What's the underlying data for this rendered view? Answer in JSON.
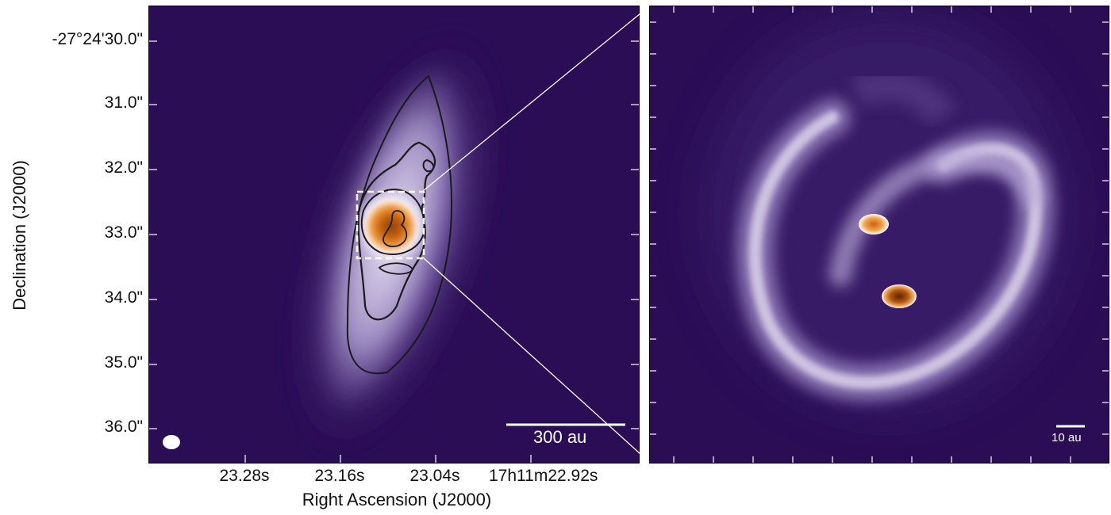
{
  "figure": {
    "left_panel": {
      "y_ticks": [
        "-27°24'30.0\"",
        "31.0\"",
        "32.0\"",
        "33.0\"",
        "34.0\"",
        "35.0\"",
        "36.0\""
      ],
      "x_ticks": [
        "23.28s",
        "23.16s",
        "23.04s",
        "17h11m22.92s"
      ],
      "y_title": "Declination (J2000)",
      "x_title": "Right Ascension (J2000)",
      "scalebar_label": "300 au"
    },
    "right_panel": {
      "scalebar_label": "10 au"
    },
    "colors": {
      "background": "#2a0d55",
      "emission_mid": "#8b74b8",
      "emission_bright": "#ffffff",
      "peak": "#e07a1a",
      "peak_dark": "#8a3f08",
      "contour": "#1a1a1a"
    }
  }
}
